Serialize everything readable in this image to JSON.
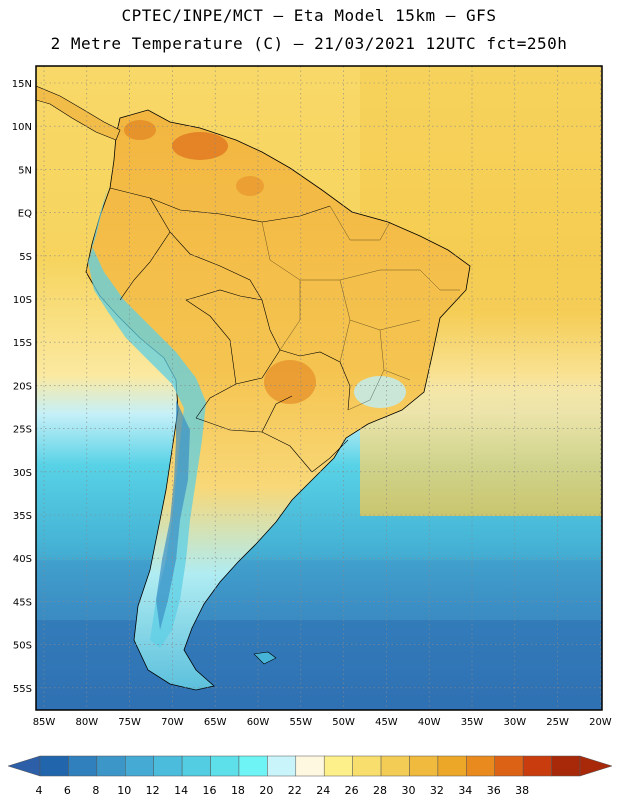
{
  "header": {
    "line1": "CPTEC/INPE/MCT –  Eta Model 15km – GFS",
    "line2": "2 Metre Temperature (C) – 21/03/2021 12UTC fct=250h"
  },
  "map": {
    "lat_labels": [
      "15N",
      "10N",
      "5N",
      "EQ",
      "5S",
      "10S",
      "15S",
      "20S",
      "25S",
      "30S",
      "35S",
      "40S",
      "45S",
      "50S",
      "55S"
    ],
    "lon_labels": [
      "85W",
      "80W",
      "75W",
      "70W",
      "65W",
      "60W",
      "55W",
      "50W",
      "45W",
      "40W",
      "35W",
      "30W",
      "25W",
      "20W"
    ]
  },
  "colorbar": {
    "levels": [
      "4",
      "6",
      "8",
      "10",
      "12",
      "14",
      "16",
      "18",
      "20",
      "22",
      "24",
      "26",
      "28",
      "30",
      "32",
      "34",
      "36",
      "38"
    ],
    "colors": [
      "#2166ac",
      "#2f80bd",
      "#3d96c8",
      "#45aad4",
      "#4cbcdc",
      "#52cde2",
      "#5ee0ea",
      "#6ef4f4",
      "#c8f4fa",
      "#fff8e0",
      "#fdf08a",
      "#f8de6c",
      "#f2cc54",
      "#efba3e",
      "#eca628",
      "#e88a1e",
      "#dc6216",
      "#c83c0e",
      "#a8280a"
    ],
    "low_end_color": "#2d5fa8",
    "high_end_color": "#a8280a"
  }
}
